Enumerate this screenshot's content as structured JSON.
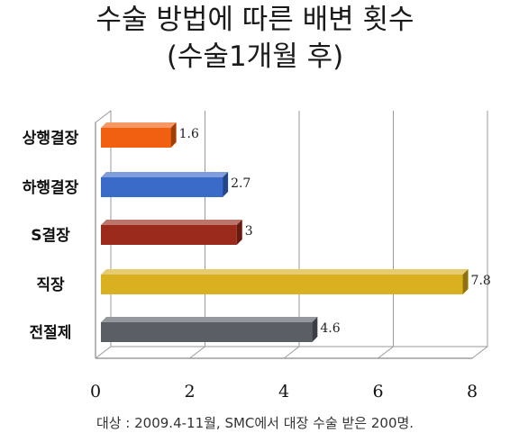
{
  "title": {
    "line1": "수술 방법에 따른 배변 횟수",
    "line2": "(수술1개월 후)"
  },
  "note": "대상 : 2009.4-11월, SMC에서 대장 수술 받은 200명.",
  "chart_data": {
    "type": "bar",
    "orientation": "horizontal",
    "title": "수술 방법에 따른 배변 횟수 (수술1개월 후)",
    "categories": [
      "상행결장",
      "하행결장",
      "S결장",
      "직장",
      "전절제"
    ],
    "values": [
      1.6,
      2.7,
      3,
      7.8,
      4.6
    ],
    "value_labels": [
      "1.6",
      "2.7",
      "3",
      "7.8",
      "4.6"
    ],
    "xlim": [
      0,
      8
    ],
    "x_ticks": [
      "0",
      "2",
      "4",
      "6",
      "8"
    ],
    "grid": true,
    "colors": [
      "#f06010",
      "#3a6bc9",
      "#9a2a1c",
      "#d8b020",
      "#5a5f66"
    ]
  }
}
